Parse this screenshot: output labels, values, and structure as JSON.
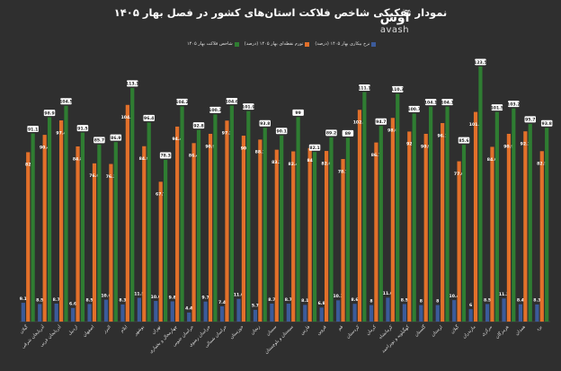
{
  "header": {
    "title": "نمودار تفکیکی شاخص فلاکت استان‌های کشور در فصل بهار ۱۴۰۵",
    "logo_fa": "آوش",
    "logo_en": "avash"
  },
  "colors": {
    "background": "#2f2f2f",
    "unemployment": "#3b5b9a",
    "inflation": "#e2702a",
    "misery": "#2f7d32",
    "label_bg": "#ffffff",
    "label_text": "#222222"
  },
  "chart_data": {
    "type": "bar",
    "title": "نمودار تفکیکی شاخص فلاکت استان‌های کشور در فصل بهار ۱۴۰۵",
    "ylim": [
      0,
      130
    ],
    "grid": false,
    "legend_position": "top-center",
    "categories": [
      "گیلان",
      "آذربایجان شرقی",
      "آذربایجان غربی",
      "اردبیل",
      "اصفهان",
      "البرز",
      "ایلام",
      "بوشهر",
      "تهران",
      "چهارمحال و بختیاری",
      "خراسان جنوبی",
      "خراسان رضوی",
      "خراسان شمالی",
      "خوزستان",
      "زنجان",
      "سمنان",
      "سیستان و بلوچستان",
      "فارس",
      "قزوین",
      "قم",
      "کردستان",
      "کرمان",
      "کرمانشاه",
      "کهگیلویه و بویراحمد",
      "گلستان",
      "لرستان",
      "گیلان",
      "مازندران",
      "مرکزی",
      "هرمزگان",
      "همدان",
      "یزد"
    ],
    "series": [
      {
        "name": "نرخ بیکاری بهار ۱۴۰۵ (درصد)",
        "values": [
          9.1,
          8.5,
          8.7,
          6.6,
          8.5,
          10.6,
          8.3,
          11.5,
          10.0,
          9.8,
          4.4,
          9.7,
          7.4,
          11.0,
          5.7,
          8.7,
          8.7,
          8.1,
          6.8,
          10.3,
          8.6,
          8.0,
          11.6,
          8.5,
          8.0,
          8.0,
          10.4,
          6.0,
          8.5,
          11.2,
          8.4,
          8.3
        ]
      },
      {
        "name": "تورم نقطه‌ای بهار ۱۴۰۵ (درصد)",
        "values": [
          82.0,
          90.4,
          97.4,
          84.8,
          76.6,
          76.3,
          104.9,
          84.9,
          67.7,
          94.4,
          86.4,
          90.9,
          97.3,
          90.0,
          88.1,
          83.2,
          82.4,
          84.0,
          82.6,
          78.7,
          102.5,
          86.7,
          98.6,
          92.0,
          90.9,
          96.1,
          77.6,
          101.5,
          84.6,
          90.9,
          92.1,
          82.5
        ]
      },
      {
        "name": "شاخص فلاکت بهار ۱۴۰۵",
        "values": [
          91.1,
          98.9,
          104.5,
          91.5,
          85.7,
          86.9,
          113.1,
          96.4,
          78.3,
          104.2,
          92.8,
          100.3,
          104.6,
          101.9,
          93.8,
          90.1,
          99.0,
          82.1,
          89.2,
          89.0,
          111.1,
          94.7,
          110.3,
          100.7,
          104.1,
          104.1,
          85.6,
          123.5,
          101.5,
          103.2,
          95.7,
          93.8
        ]
      }
    ],
    "value_labels": [
      [
        "9.1",
        "8.5",
        "8.7",
        "6.6",
        "8.5",
        "10.6",
        "8.3",
        "11.5",
        "10.0",
        "9.8",
        "4.4",
        "9.7",
        "7.4",
        "11.0",
        "5.7",
        "8.7",
        "8.7",
        "8.1",
        "6.8",
        "10.3",
        "8.6",
        "8",
        "11.6",
        "8.5",
        "8",
        "8",
        "10.4",
        "6",
        "8.5",
        "11.2",
        "8.4",
        "8.3"
      ],
      [
        "82",
        "90.4",
        "97.4",
        "84.8",
        "76.6",
        "76.3",
        "104.9",
        "84.9",
        "67.7",
        "94.4",
        "86.4",
        "90.9",
        "97.3",
        "90",
        "88.1",
        "83.2",
        "82.4",
        "84",
        "82.6",
        "78.7",
        "102.5",
        "86.7",
        "98.6",
        "92",
        "90.9",
        "96.1",
        "77.6",
        "101.5",
        "84.6",
        "90.9",
        "92.1",
        "82.5"
      ],
      [
        "91.1",
        "98.9",
        "104.5",
        "91.5",
        "85.7",
        "86.9",
        "113.1",
        "96.4",
        "78.3",
        "104.2",
        "92.8",
        "100.3",
        "104.6",
        "101.9",
        "93.8",
        "90.1",
        "99",
        "82.1",
        "89.2",
        "89",
        "111.1",
        "94.7",
        "110.3",
        "100.7",
        "104.1",
        "104.1",
        "85.6",
        "123.5",
        "101.5",
        "103.2",
        "95.7",
        "93.8"
      ]
    ]
  }
}
